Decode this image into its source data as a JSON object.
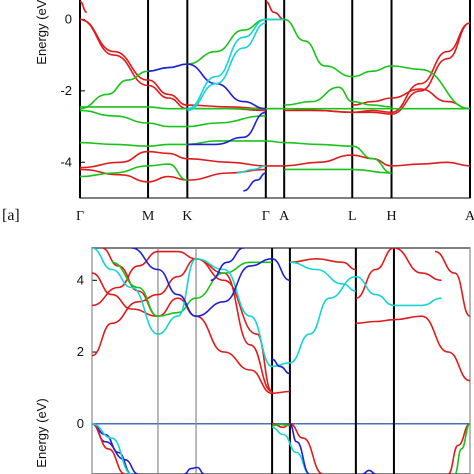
{
  "chart_data": [
    {
      "type": "line",
      "panel_label": "[a]",
      "ylabel": "Energy (eV)",
      "ylim": [
        -5,
        0.6
      ],
      "yticks": [
        0,
        -2,
        -4
      ],
      "kpoints": [
        {
          "label": "Γ",
          "pos": 0.0
        },
        {
          "label": "M",
          "pos": 1.0
        },
        {
          "label": "K",
          "pos": 1.577
        },
        {
          "label": "Γ",
          "pos": 2.73
        },
        {
          "label": "A",
          "pos": 3.0
        },
        {
          "label": "L",
          "pos": 4.0
        },
        {
          "label": "H",
          "pos": 4.577
        },
        {
          "label": "A",
          "pos": 5.73
        }
      ],
      "xlim": [
        0,
        5.73
      ],
      "colors": {
        "red": "#e01b1b",
        "green": "#19c419",
        "blue": "#1f1fd6",
        "cyan": "#17d4d4"
      },
      "series": [
        {
          "color": "red",
          "x": [
            0,
            0.5,
            1.0,
            1.3,
            1.577,
            2.2,
            2.73,
            3.0
          ],
          "y": [
            0.0,
            -0.9,
            -1.7,
            -2.1,
            -2.4,
            -2.45,
            -2.5,
            -2.5
          ]
        },
        {
          "color": "red",
          "x": [
            0,
            0.5,
            1.0,
            1.3,
            1.577,
            2.2,
            2.73
          ],
          "y": [
            0.0,
            -1.0,
            -1.85,
            -2.2,
            -2.5,
            -2.5,
            -2.55
          ]
        },
        {
          "color": "red",
          "x": [
            0,
            0.6,
            1.0,
            1.3,
            1.577,
            2.2,
            2.73,
            3.0
          ],
          "y": [
            -4.15,
            -4.0,
            -3.7,
            -3.75,
            -3.9,
            -4.0,
            -4.1,
            -4.1
          ]
        },
        {
          "color": "red",
          "x": [
            0,
            0.6,
            1.0,
            1.3,
            1.577,
            2.2,
            2.73
          ],
          "y": [
            -4.2,
            -4.35,
            -4.55,
            -4.4,
            -4.5,
            -4.3,
            -4.2
          ]
        },
        {
          "color": "red",
          "x": [
            3.0,
            3.5,
            4.0,
            4.3,
            4.577,
            5.0,
            5.4,
            5.73
          ],
          "y": [
            -4.1,
            -4.0,
            -3.8,
            -3.9,
            -4.1,
            -4.05,
            -4.0,
            -4.1
          ]
        },
        {
          "color": "red",
          "x": [
            3.0,
            3.5,
            4.0,
            4.3,
            4.577,
            5.0,
            5.4,
            5.73
          ],
          "y": [
            -2.5,
            -2.55,
            -2.6,
            -2.55,
            -2.6,
            -1.8,
            -0.9,
            -0.1
          ]
        },
        {
          "color": "red",
          "x": [
            3.0,
            3.5,
            4.0,
            4.3,
            4.577,
            5.0,
            5.4,
            5.73
          ],
          "y": [
            -2.55,
            -2.55,
            -2.6,
            -2.6,
            -2.65,
            -2.0,
            -1.1,
            -0.1
          ]
        },
        {
          "color": "red",
          "x": [
            4.0,
            4.3,
            4.577,
            5.0,
            5.4,
            5.73
          ],
          "y": [
            -2.4,
            -2.3,
            -2.2,
            -1.95,
            -2.3,
            -2.5
          ]
        },
        {
          "color": "red",
          "x": [
            2.73,
            2.85,
            3.0
          ],
          "y": [
            0.5,
            0.2,
            0.0
          ]
        },
        {
          "color": "red",
          "x": [
            0,
            0.1
          ],
          "y": [
            0.5,
            0.2
          ]
        },
        {
          "color": "green",
          "x": [
            0,
            0.4,
            0.7,
            1.0,
            1.3,
            1.577,
            2.0,
            2.4,
            2.73,
            3.0
          ],
          "y": [
            -2.5,
            -2.1,
            -1.7,
            -1.45,
            -1.35,
            -1.25,
            -0.9,
            -0.3,
            0.0,
            0.0
          ]
        },
        {
          "color": "green",
          "x": [
            0,
            0.5,
            1.0,
            1.3,
            1.577,
            2.2,
            2.73,
            3.0,
            3.5,
            4.0,
            4.577,
            5.73
          ],
          "y": [
            -2.45,
            -2.45,
            -2.45,
            -2.5,
            -2.5,
            -2.5,
            -2.5,
            -2.5,
            -2.5,
            -2.5,
            -2.5,
            -2.5
          ]
        },
        {
          "color": "green",
          "x": [
            0,
            0.5,
            1.0,
            1.3,
            1.577,
            2.0,
            2.73,
            3.0
          ],
          "y": [
            -3.45,
            -3.5,
            -3.55,
            -3.5,
            -3.5,
            -3.4,
            -3.4,
            -3.45
          ]
        },
        {
          "color": "green",
          "x": [
            0,
            0.5,
            1.0,
            1.3,
            1.577,
            2.0,
            2.73
          ],
          "y": [
            -2.55,
            -2.7,
            -2.9,
            -3.0,
            -3.0,
            -2.9,
            -2.7
          ]
        },
        {
          "color": "green",
          "x": [
            0,
            0.5,
            1.0,
            1.3,
            1.577
          ],
          "y": [
            -4.4,
            -4.3,
            -4.1,
            -4.05,
            -4.5
          ]
        },
        {
          "color": "green",
          "x": [
            3.0,
            3.3,
            3.6,
            4.0,
            4.3,
            4.577,
            5.0,
            5.73
          ],
          "y": [
            0.0,
            -0.6,
            -1.3,
            -1.6,
            -1.45,
            -1.3,
            -1.4,
            -2.5
          ]
        },
        {
          "color": "green",
          "x": [
            3.0,
            3.4,
            3.8,
            4.0,
            4.3,
            4.577
          ],
          "y": [
            -2.4,
            -2.3,
            -1.9,
            -2.3,
            -2.4,
            -2.45
          ]
        },
        {
          "color": "green",
          "x": [
            3.0,
            3.5,
            4.0,
            4.3,
            4.577
          ],
          "y": [
            -3.45,
            -3.5,
            -3.55,
            -3.9,
            -4.3
          ]
        },
        {
          "color": "green",
          "x": [
            3.0,
            3.5,
            4.0,
            4.577
          ],
          "y": [
            -4.2,
            -4.2,
            -4.2,
            -4.3
          ]
        },
        {
          "color": "blue",
          "x": [
            1.0,
            1.3,
            1.577,
            2.0,
            2.4,
            2.73
          ],
          "y": [
            -1.45,
            -1.35,
            -1.25,
            -1.8,
            -2.3,
            -2.5
          ]
        },
        {
          "color": "blue",
          "x": [
            1.577,
            2.0,
            2.4,
            2.73
          ],
          "y": [
            -3.5,
            -3.5,
            -3.3,
            -2.6
          ]
        },
        {
          "color": "blue",
          "x": [
            2.4,
            2.6,
            2.73
          ],
          "y": [
            -4.8,
            -4.5,
            -4.3
          ]
        },
        {
          "color": "cyan",
          "x": [
            1.577,
            2.0,
            2.4,
            2.73,
            3.0
          ],
          "y": [
            -2.5,
            -1.6,
            -0.5,
            0.0,
            0.0
          ]
        },
        {
          "color": "cyan",
          "x": [
            1.577,
            2.0,
            2.4,
            2.73
          ],
          "y": [
            -2.55,
            -1.8,
            -0.8,
            -0.1
          ]
        },
        {
          "color": "cyan",
          "x": [
            2.3,
            2.55,
            2.73
          ],
          "y": [
            -4.3,
            -4.2,
            -4.1
          ]
        }
      ]
    },
    {
      "type": "line",
      "ylabel": "Energy (eV)",
      "ylim": [
        -1.4,
        4.9
      ],
      "yticks": [
        4,
        2,
        0
      ],
      "xlim": [
        0,
        5.73
      ],
      "kpoints": [
        {
          "label": "",
          "pos": 0.0
        },
        {
          "label": "",
          "pos": 1.0
        },
        {
          "label": "",
          "pos": 1.577
        },
        {
          "label": "",
          "pos": 2.73
        },
        {
          "label": "",
          "pos": 3.0
        },
        {
          "label": "",
          "pos": 4.0
        },
        {
          "label": "",
          "pos": 4.577
        },
        {
          "label": "",
          "pos": 5.73
        }
      ],
      "series": [
        {
          "color": "red",
          "x": [
            0,
            0.3,
            0.7,
            1.0,
            1.3,
            1.577,
            2.0,
            2.4,
            2.73
          ],
          "y": [
            1.9,
            2.8,
            3.4,
            3.6,
            4.1,
            4.6,
            4.2,
            2.2,
            0.9
          ]
        },
        {
          "color": "red",
          "x": [
            0,
            0.4,
            0.7,
            1.0,
            1.3,
            1.577,
            2.0,
            2.5,
            2.73
          ],
          "y": [
            3.3,
            3.8,
            4.4,
            4.8,
            4.8,
            4.6,
            4.0,
            2.5,
            0.9
          ]
        },
        {
          "color": "red",
          "x": [
            0,
            0.3,
            0.6,
            1.0,
            1.3,
            1.577,
            2.0,
            2.4,
            2.73,
            3.0
          ],
          "y": [
            4.2,
            3.6,
            3.2,
            3.0,
            3.5,
            3.0,
            2.0,
            1.5,
            0.85,
            0.9
          ]
        },
        {
          "color": "red",
          "x": [
            0.15,
            0.4,
            0.7,
            1.0
          ],
          "y": [
            4.9,
            4.4,
            3.7,
            3.0
          ]
        },
        {
          "color": "red",
          "x": [
            3.0,
            3.4,
            3.8,
            4.0
          ],
          "y": [
            4.5,
            4.6,
            4.5,
            4.3
          ]
        },
        {
          "color": "red",
          "x": [
            4.0,
            4.3,
            4.577,
            5.0,
            5.4,
            5.73
          ],
          "y": [
            2.8,
            2.85,
            2.9,
            3.0,
            2.0,
            1.2
          ]
        },
        {
          "color": "red",
          "x": [
            4.0,
            4.3,
            4.577,
            5.0,
            5.3
          ],
          "y": [
            3.5,
            4.3,
            4.9,
            4.2,
            4.0
          ]
        },
        {
          "color": "red",
          "x": [
            5.2,
            5.5,
            5.73
          ],
          "y": [
            4.8,
            4.2,
            3.0
          ]
        },
        {
          "color": "green",
          "x": [
            0.3,
            0.7,
            1.0,
            1.3,
            1.577,
            2.0,
            2.4,
            2.73
          ],
          "y": [
            4.5,
            3.8,
            3.0,
            3.1,
            3.5,
            4.2,
            4.5,
            4.5
          ]
        },
        {
          "color": "cyan",
          "x": [
            0,
            0.3,
            0.6,
            1.0,
            1.3,
            1.577,
            2.0,
            2.4,
            2.73,
            3.0
          ],
          "y": [
            4.9,
            4.3,
            3.8,
            2.5,
            3.0,
            4.6,
            4.3,
            3.0,
            1.6,
            1.7
          ]
        },
        {
          "color": "cyan",
          "x": [
            3.0,
            3.3,
            3.6,
            4.0,
            4.3,
            4.577,
            5.0,
            5.3
          ],
          "y": [
            1.7,
            2.5,
            3.5,
            4.1,
            3.6,
            3.3,
            3.3,
            3.5
          ]
        },
        {
          "color": "cyan",
          "x": [
            3.0,
            3.4,
            3.8,
            4.0
          ],
          "y": [
            4.5,
            4.3,
            3.9,
            3.7
          ]
        },
        {
          "color": "blue",
          "x": [
            0.6,
            1.0,
            1.3,
            1.577,
            2.0,
            2.4,
            2.73,
            3.0
          ],
          "y": [
            4.9,
            4.3,
            3.6,
            3.0,
            3.4,
            4.4,
            4.6,
            4.0
          ]
        },
        {
          "color": "blue",
          "x": [
            2.73,
            2.85,
            3.0
          ],
          "y": [
            1.8,
            1.6,
            1.4
          ]
        },
        {
          "color": "blue",
          "x": [
            1.8,
            2.05,
            2.3,
            2.55
          ],
          "y": [
            4.0,
            4.5,
            4.9,
            5.3
          ]
        },
        {
          "color": "blue",
          "x": [
            0,
            0.2,
            0.4,
            0.6
          ],
          "y": [
            0.0,
            -0.3,
            -0.8,
            -1.4
          ]
        },
        {
          "color": "blue",
          "x": [
            0,
            0.2,
            0.5,
            0.7
          ],
          "y": [
            0.0,
            -0.5,
            -1.0,
            -1.4
          ]
        },
        {
          "color": "red",
          "x": [
            0,
            0.25,
            0.5
          ],
          "y": [
            0.0,
            -0.7,
            -1.4
          ]
        },
        {
          "color": "cyan",
          "x": [
            0,
            0.3,
            0.6
          ],
          "y": [
            0.0,
            -0.4,
            -1.4
          ]
        },
        {
          "color": "red",
          "x": [
            2.73,
            2.9,
            3.0,
            3.2,
            3.5
          ],
          "y": [
            0.0,
            -0.1,
            0.0,
            -0.4,
            -1.4
          ]
        },
        {
          "color": "cyan",
          "x": [
            2.73,
            2.9,
            3.1,
            3.3
          ],
          "y": [
            -0.1,
            -0.3,
            -0.8,
            -1.4
          ]
        },
        {
          "color": "blue",
          "x": [
            3.0,
            3.1,
            3.3
          ],
          "y": [
            0.0,
            -0.5,
            -1.4
          ]
        },
        {
          "color": "green",
          "x": [
            2.73,
            2.85,
            3.0
          ],
          "y": [
            -0.05,
            -0.02,
            -0.05
          ]
        },
        {
          "color": "red",
          "x": [
            5.4,
            5.55,
            5.73
          ],
          "y": [
            -1.4,
            -0.6,
            0.0
          ]
        },
        {
          "color": "green",
          "x": [
            5.5,
            5.6,
            5.73
          ],
          "y": [
            -1.4,
            -0.7,
            0.0
          ]
        },
        {
          "color": "blue",
          "x": [
            1.4,
            1.5,
            1.6,
            1.7
          ],
          "y": [
            -1.4,
            -1.25,
            -1.22,
            -1.4
          ]
        },
        {
          "color": "blue",
          "x": [
            4.1,
            4.2,
            4.3
          ],
          "y": [
            -1.4,
            -1.3,
            -1.4
          ]
        }
      ]
    }
  ]
}
